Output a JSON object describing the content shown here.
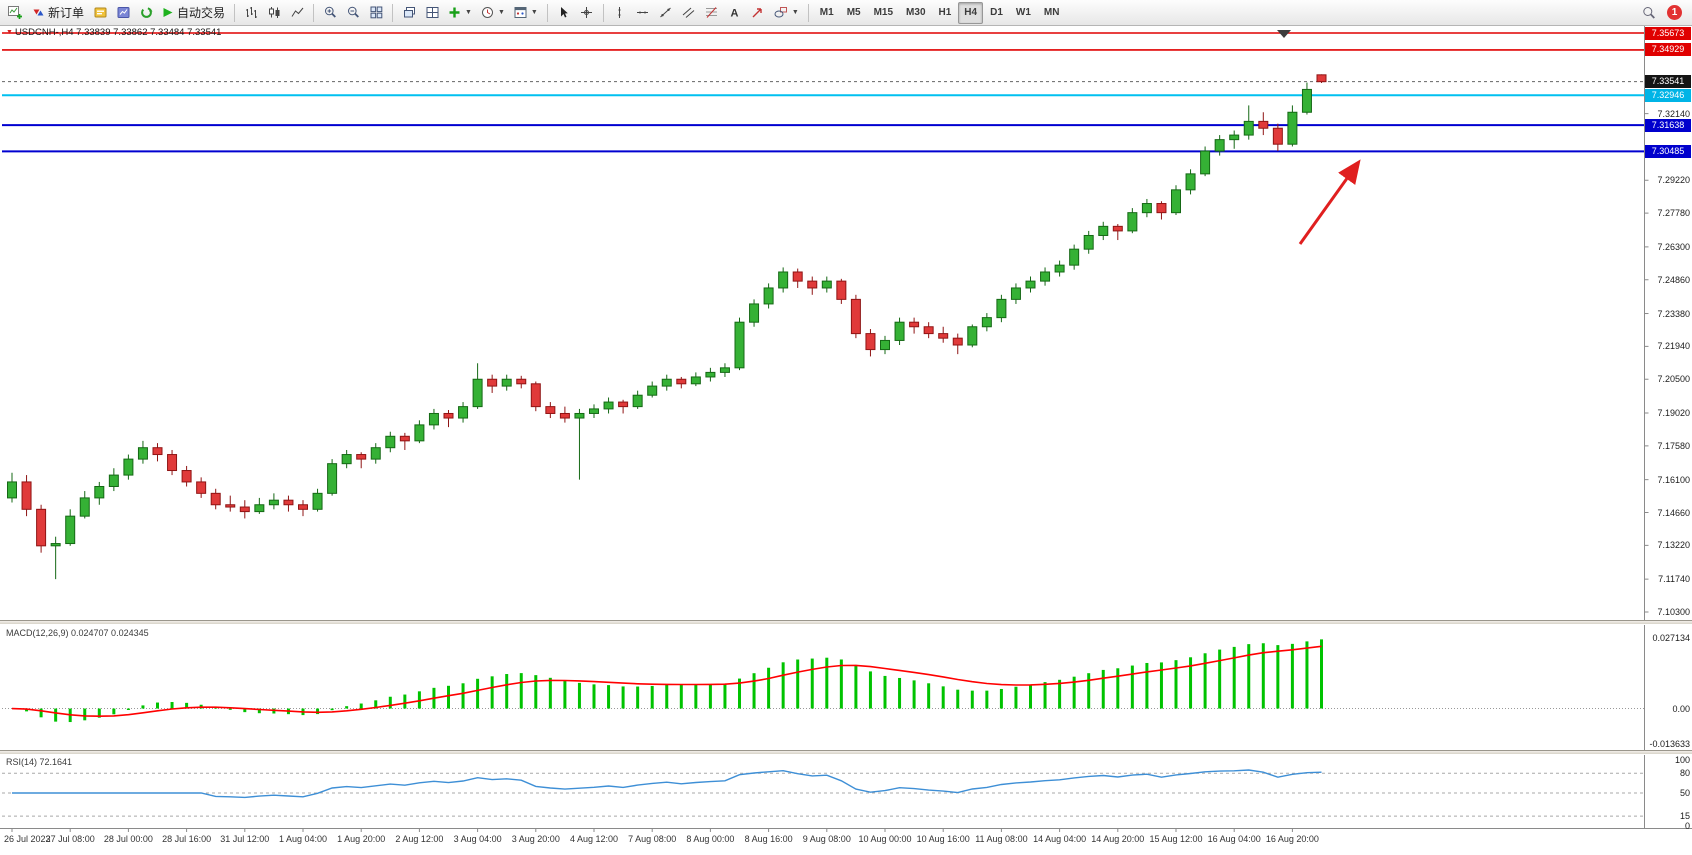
{
  "toolbar": {
    "new_order": "新订单",
    "auto_trading": "自动交易",
    "timeframes": [
      "M1",
      "M5",
      "M15",
      "M30",
      "H1",
      "H4",
      "D1",
      "W1",
      "MN"
    ],
    "active_timeframe": "H4",
    "notification_badge": "1"
  },
  "chart": {
    "title": "USDCNH-,H4 7.33839 7.33862 7.33484 7.33541",
    "symbol": "USDCNH-",
    "timeframe": "H4",
    "ohlc_display": {
      "open": "7.33839",
      "high": "7.33862",
      "low": "7.33484",
      "close": "7.33541"
    }
  },
  "price_scale": {
    "plain_ticks": [
      "7.32140",
      "7.29220",
      "7.27780",
      "7.26300",
      "7.24860",
      "7.23380",
      "7.21940",
      "7.20500",
      "7.19020",
      "7.17580",
      "7.16100",
      "7.14660",
      "7.13220",
      "7.11740",
      "7.10300"
    ],
    "level_boxes": [
      {
        "label": "7.35673",
        "price": 7.35673,
        "color": "#e00000",
        "line": "#e00000",
        "lw": 1.6,
        "type": "resistance-line"
      },
      {
        "label": "7.34929",
        "price": 7.34929,
        "color": "#e00000",
        "line": "#e00000",
        "lw": 1.6,
        "type": "resistance-line"
      },
      {
        "label": "7.33541",
        "price": 7.33541,
        "color": "#141414",
        "line": "#666666",
        "lw": 1,
        "type": "current-price"
      },
      {
        "label": "7.32946",
        "price": 7.32946,
        "color": "#00b4e6",
        "line": "#00c0f0",
        "lw": 2,
        "type": "level-line"
      },
      {
        "label": "7.31638",
        "price": 7.31638,
        "color": "#0000cd",
        "line": "#0000d0",
        "lw": 2,
        "type": "support-line"
      },
      {
        "label": "7.30485",
        "price": 7.30485,
        "color": "#0000cd",
        "line": "#0000d0",
        "lw": 2,
        "type": "support-line"
      }
    ]
  },
  "indicators": {
    "macd": {
      "label": "MACD(12,26,9) 0.024707 0.024345",
      "params": "12,26,9",
      "value_hist": "0.024707",
      "value_signal": "0.024345",
      "scale": [
        "0.027134",
        "0.00",
        "-0.013633"
      ],
      "scale_max": 0.027134,
      "scale_min": -0.013633
    },
    "rsi": {
      "label": "RSI(14) 72.1641",
      "period": "14",
      "value": "72.1641",
      "scale": [
        "100",
        "80",
        "50",
        "15",
        "0"
      ],
      "levels": [
        80,
        50,
        15
      ]
    }
  },
  "x_axis": {
    "labels": [
      "26 Jul 2023",
      "27 Jul 08:00",
      "28 Jul 00:00",
      "28 Jul 16:00",
      "31 Jul 12:00",
      "1 Aug 04:00",
      "1 Aug 20:00",
      "2 Aug 12:00",
      "3 Aug 04:00",
      "3 Aug 20:00",
      "4 Aug 12:00",
      "7 Aug 08:00",
      "8 Aug 00:00",
      "8 Aug 16:00",
      "9 Aug 08:00",
      "10 Aug 00:00",
      "10 Aug 16:00",
      "11 Aug 08:00",
      "14 Aug 04:00",
      "14 Aug 20:00",
      "15 Aug 12:00",
      "16 Aug 04:00",
      "16 Aug 20:00"
    ]
  },
  "annotations": {
    "trend_arrow": {
      "color": "#e01f1f",
      "direction": "up-right"
    }
  },
  "chart_data": {
    "type": "candlestick",
    "symbol": "USDCNH",
    "timeframe": "H4",
    "ylim": [
      7.103,
      7.35673
    ],
    "hlines": [
      7.35673,
      7.34929,
      7.33541,
      7.32946,
      7.31638,
      7.30485
    ],
    "colors": {
      "bull": "#35b135",
      "bull_edge": "#156815",
      "bear": "#e03a3a",
      "bear_edge": "#8f1414",
      "macd_hist": "#00c300",
      "macd_signal": "#ff0000",
      "rsi_line": "#3e8fd6",
      "grid": "#c8c8c8"
    },
    "candles": [
      [
        7.153,
        7.164,
        7.151,
        7.16
      ],
      [
        7.16,
        7.163,
        7.145,
        7.148
      ],
      [
        7.148,
        7.15,
        7.129,
        7.132
      ],
      [
        7.132,
        7.136,
        7.1174,
        7.133
      ],
      [
        7.133,
        7.148,
        7.132,
        7.145
      ],
      [
        7.145,
        7.156,
        7.144,
        7.153
      ],
      [
        7.153,
        7.16,
        7.15,
        7.158
      ],
      [
        7.158,
        7.166,
        7.156,
        7.163
      ],
      [
        7.163,
        7.172,
        7.161,
        7.17
      ],
      [
        7.17,
        7.178,
        7.168,
        7.175
      ],
      [
        7.175,
        7.177,
        7.169,
        7.172
      ],
      [
        7.172,
        7.174,
        7.163,
        7.165
      ],
      [
        7.165,
        7.167,
        7.158,
        7.16
      ],
      [
        7.16,
        7.162,
        7.153,
        7.155
      ],
      [
        7.155,
        7.157,
        7.148,
        7.15
      ],
      [
        7.15,
        7.154,
        7.147,
        7.149
      ],
      [
        7.149,
        7.152,
        7.144,
        7.147
      ],
      [
        7.147,
        7.153,
        7.146,
        7.15
      ],
      [
        7.15,
        7.155,
        7.148,
        7.152
      ],
      [
        7.152,
        7.154,
        7.147,
        7.15
      ],
      [
        7.15,
        7.152,
        7.145,
        7.148
      ],
      [
        7.148,
        7.157,
        7.147,
        7.155
      ],
      [
        7.155,
        7.17,
        7.154,
        7.168
      ],
      [
        7.168,
        7.174,
        7.166,
        7.172
      ],
      [
        7.172,
        7.173,
        7.166,
        7.17
      ],
      [
        7.17,
        7.177,
        7.168,
        7.175
      ],
      [
        7.175,
        7.182,
        7.173,
        7.18
      ],
      [
        7.18,
        7.1815,
        7.174,
        7.178
      ],
      [
        7.178,
        7.187,
        7.177,
        7.185
      ],
      [
        7.185,
        7.192,
        7.183,
        7.19
      ],
      [
        7.19,
        7.1915,
        7.184,
        7.188
      ],
      [
        7.188,
        7.195,
        7.186,
        7.193
      ],
      [
        7.193,
        7.212,
        7.192,
        7.205
      ],
      [
        7.205,
        7.207,
        7.199,
        7.202
      ],
      [
        7.202,
        7.207,
        7.2,
        7.205
      ],
      [
        7.205,
        7.2065,
        7.201,
        7.203
      ],
      [
        7.203,
        7.204,
        7.191,
        7.193
      ],
      [
        7.193,
        7.195,
        7.188,
        7.19
      ],
      [
        7.19,
        7.193,
        7.186,
        7.188
      ],
      [
        7.188,
        7.192,
        7.161,
        7.19
      ],
      [
        7.19,
        7.194,
        7.188,
        7.192
      ],
      [
        7.192,
        7.197,
        7.19,
        7.195
      ],
      [
        7.195,
        7.196,
        7.19,
        7.193
      ],
      [
        7.193,
        7.2,
        7.192,
        7.198
      ],
      [
        7.198,
        7.204,
        7.197,
        7.202
      ],
      [
        7.202,
        7.207,
        7.2,
        7.205
      ],
      [
        7.205,
        7.206,
        7.201,
        7.203
      ],
      [
        7.203,
        7.208,
        7.202,
        7.206
      ],
      [
        7.206,
        7.21,
        7.204,
        7.208
      ],
      [
        7.208,
        7.212,
        7.206,
        7.21
      ],
      [
        7.21,
        7.232,
        7.209,
        7.23
      ],
      [
        7.23,
        7.24,
        7.228,
        7.238
      ],
      [
        7.238,
        7.247,
        7.236,
        7.245
      ],
      [
        7.245,
        7.254,
        7.243,
        7.252
      ],
      [
        7.252,
        7.2535,
        7.245,
        7.248
      ],
      [
        7.248,
        7.25,
        7.242,
        7.245
      ],
      [
        7.245,
        7.25,
        7.243,
        7.248
      ],
      [
        7.248,
        7.249,
        7.238,
        7.24
      ],
      [
        7.24,
        7.242,
        7.223,
        7.225
      ],
      [
        7.225,
        7.227,
        7.215,
        7.218
      ],
      [
        7.218,
        7.224,
        7.216,
        7.222
      ],
      [
        7.222,
        7.232,
        7.22,
        7.23
      ],
      [
        7.23,
        7.232,
        7.225,
        7.228
      ],
      [
        7.228,
        7.23,
        7.223,
        7.225
      ],
      [
        7.225,
        7.228,
        7.221,
        7.223
      ],
      [
        7.223,
        7.225,
        7.216,
        7.22
      ],
      [
        7.22,
        7.229,
        7.219,
        7.228
      ],
      [
        7.228,
        7.234,
        7.226,
        7.232
      ],
      [
        7.232,
        7.242,
        7.23,
        7.24
      ],
      [
        7.24,
        7.247,
        7.238,
        7.245
      ],
      [
        7.245,
        7.25,
        7.243,
        7.248
      ],
      [
        7.248,
        7.254,
        7.246,
        7.252
      ],
      [
        7.252,
        7.257,
        7.25,
        7.255
      ],
      [
        7.255,
        7.264,
        7.253,
        7.262
      ],
      [
        7.262,
        7.27,
        7.26,
        7.268
      ],
      [
        7.268,
        7.274,
        7.266,
        7.272
      ],
      [
        7.272,
        7.273,
        7.266,
        7.27
      ],
      [
        7.27,
        7.28,
        7.269,
        7.278
      ],
      [
        7.278,
        7.284,
        7.276,
        7.282
      ],
      [
        7.282,
        7.283,
        7.275,
        7.278
      ],
      [
        7.278,
        7.29,
        7.277,
        7.288
      ],
      [
        7.288,
        7.297,
        7.286,
        7.295
      ],
      [
        7.295,
        7.307,
        7.294,
        7.305
      ],
      [
        7.305,
        7.312,
        7.303,
        7.31
      ],
      [
        7.31,
        7.314,
        7.306,
        7.312
      ],
      [
        7.312,
        7.325,
        7.31,
        7.318
      ],
      [
        7.318,
        7.322,
        7.312,
        7.315
      ],
      [
        7.315,
        7.317,
        7.305,
        7.308
      ],
      [
        7.308,
        7.325,
        7.307,
        7.322
      ],
      [
        7.322,
        7.335,
        7.321,
        7.332
      ],
      [
        7.3384,
        7.3386,
        7.3348,
        7.3354
      ]
    ]
  }
}
